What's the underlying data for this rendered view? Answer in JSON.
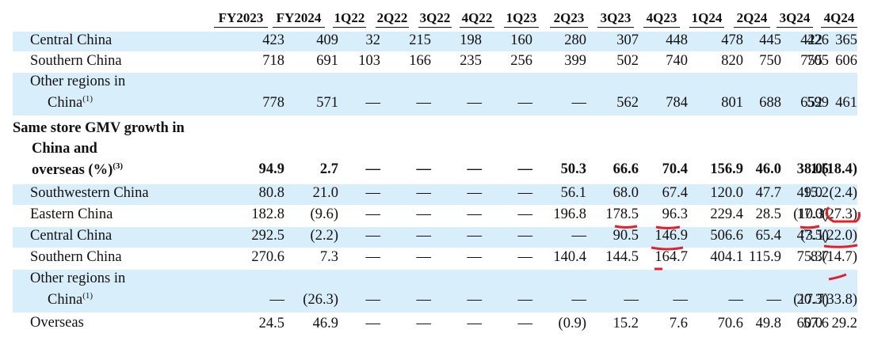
{
  "columns": [
    "FY2023",
    "FY2024",
    "1Q22",
    "2Q22",
    "3Q22",
    "4Q22",
    "1Q23",
    "2Q23",
    "3Q23",
    "4Q23",
    "1Q24",
    "2Q24",
    "3Q24",
    "4Q24"
  ],
  "rows_top": [
    {
      "label": "Central China",
      "values": [
        "423",
        "409",
        "32",
        "215",
        "198",
        "160",
        "280",
        "307",
        "448",
        "478",
        "445",
        "422",
        "426",
        "365"
      ]
    },
    {
      "label": "Southern China",
      "values": [
        "718",
        "691",
        "103",
        "166",
        "235",
        "256",
        "399",
        "502",
        "740",
        "820",
        "750",
        "755",
        "705",
        "606"
      ]
    },
    {
      "label": "Other regions in",
      "label2": "China",
      "sup": "(1)",
      "values": [
        "778",
        "571",
        "—",
        "—",
        "—",
        "—",
        "—",
        "562",
        "784",
        "801",
        "688",
        "652",
        "599",
        "461"
      ]
    }
  ],
  "section": {
    "line1": "Same store GMV growth in",
    "line2": "China and",
    "line3": "overseas (%)",
    "sup": "(3)",
    "values": [
      "94.9",
      "2.7",
      "—",
      "—",
      "—",
      "—",
      "50.3",
      "66.6",
      "70.4",
      "156.9",
      "46.0",
      "38.0",
      "1.5",
      "(18.4)"
    ]
  },
  "rows_bottom": [
    {
      "label": "Southwestern China",
      "values": [
        "80.8",
        "21.0",
        "—",
        "—",
        "—",
        "—",
        "56.1",
        "68.0",
        "67.4",
        "120.0",
        "47.7",
        "49.0",
        "15.2",
        "(2.4)"
      ]
    },
    {
      "label": "Eastern China",
      "values": [
        "182.8",
        "(9.6)",
        "—",
        "—",
        "—",
        "—",
        "196.8",
        "178.5",
        "96.3",
        "229.4",
        "28.5",
        "17.0",
        "(10.3)",
        "(27.3)"
      ]
    },
    {
      "label": "Central China",
      "values": [
        "292.5",
        "(2.2)",
        "—",
        "—",
        "—",
        "—",
        "—",
        "90.5",
        "146.9",
        "506.6",
        "65.4",
        "47.5",
        "(3.1)",
        "(22.0)"
      ]
    },
    {
      "label": "Southern China",
      "values": [
        "270.6",
        "7.3",
        "—",
        "—",
        "—",
        "—",
        "140.4",
        "144.5",
        "164.7",
        "404.1",
        "115.9",
        "75.3",
        "8.7",
        "(14.7)"
      ]
    },
    {
      "label": "Other regions in",
      "label2": "China",
      "sup": "(1)",
      "values": [
        "—",
        "(26.3)",
        "—",
        "—",
        "—",
        "—",
        "—",
        "—",
        "—",
        "—",
        "—",
        "20.3",
        "(17.7)",
        "(33.8)"
      ]
    },
    {
      "label": "Overseas",
      "values": [
        "24.5",
        "46.9",
        "—",
        "—",
        "—",
        "—",
        "(0.9)",
        "15.2",
        "7.6",
        "70.6",
        "49.8",
        "60.0",
        "57.6",
        "29.2"
      ]
    }
  ],
  "colors": {
    "shade": "#d9eefb",
    "annotation": "#e0202a"
  }
}
